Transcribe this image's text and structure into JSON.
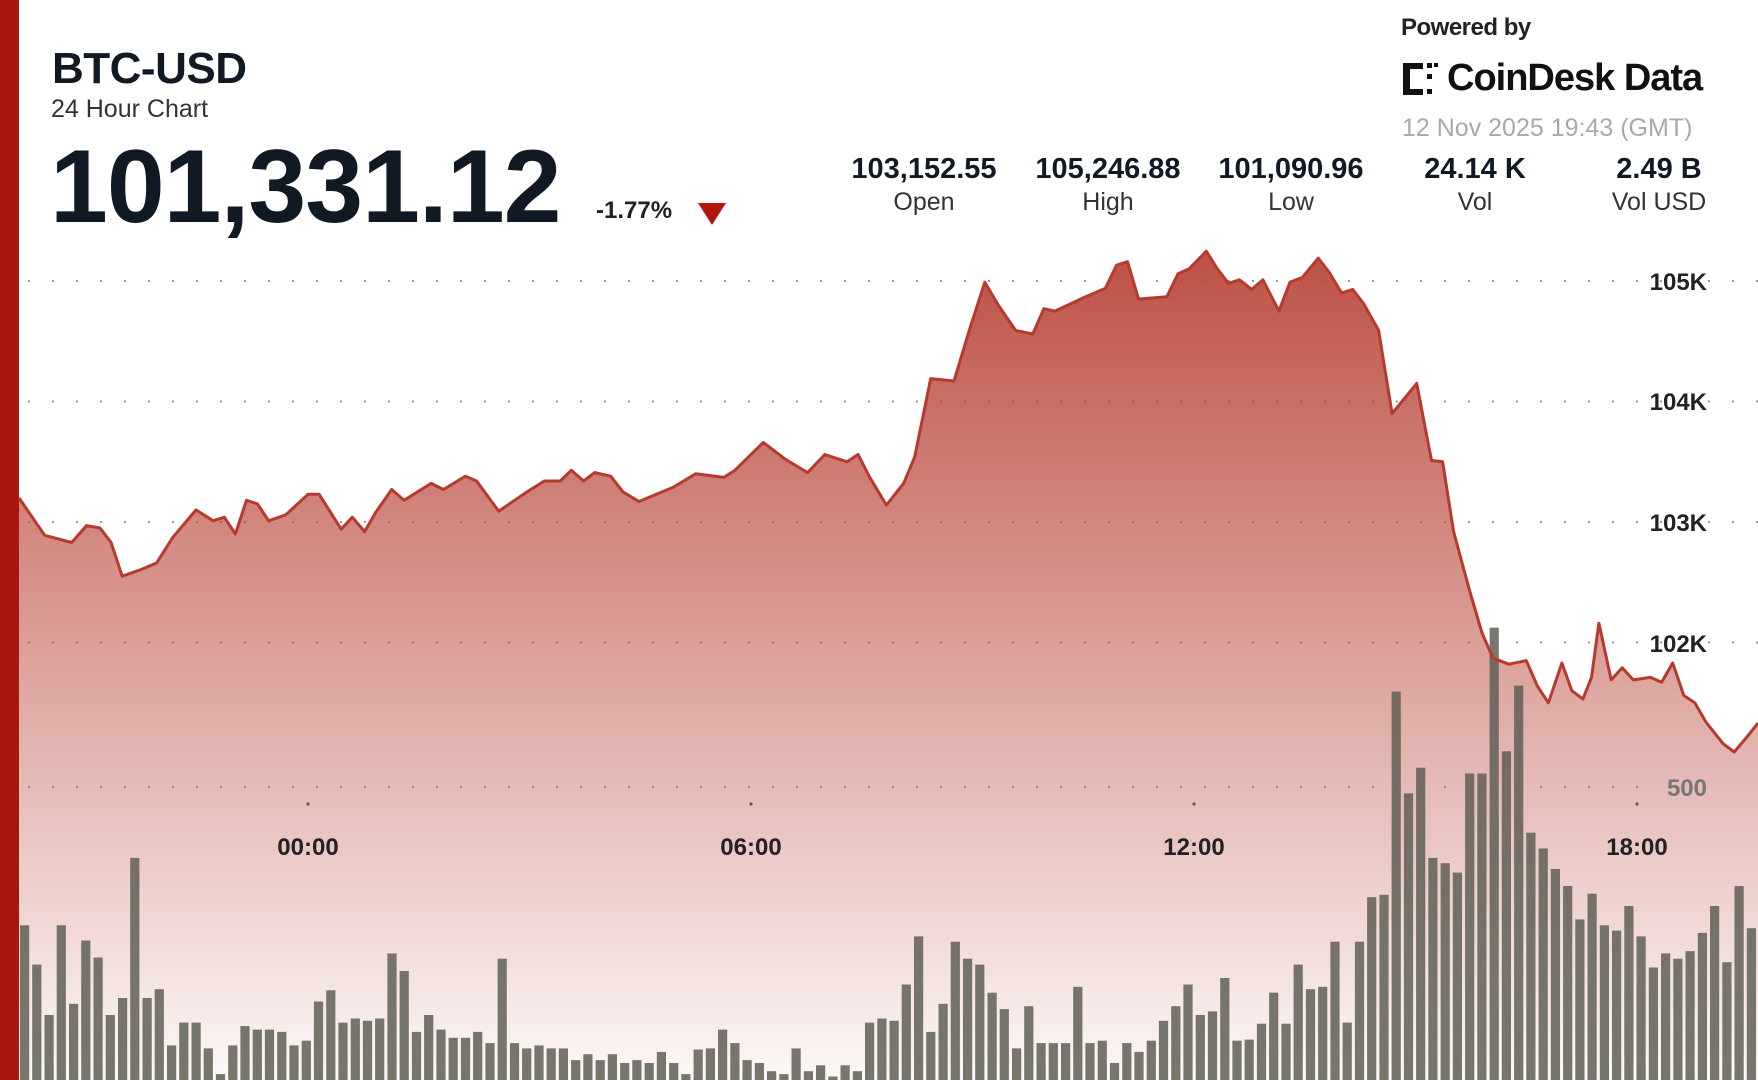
{
  "header": {
    "title": "BTC-USD",
    "subtitle": "24 Hour Chart",
    "price": "101,331.12",
    "change": "-1.77%",
    "change_direction_icon": "triangle-down-icon",
    "powered_by": "Powered by",
    "brand": "CoinDesk Data",
    "timestamp": "12 Nov 2025 19:43 (GMT)"
  },
  "stats": [
    {
      "value": "103,152.55",
      "label": "Open"
    },
    {
      "value": "105,246.88",
      "label": "High"
    },
    {
      "value": "101,090.96",
      "label": "Low"
    },
    {
      "value": "24.14 K",
      "label": "Vol"
    },
    {
      "value": "2.49 B",
      "label": "Vol USD"
    }
  ],
  "colors": {
    "accent": "#a8170d",
    "line": "#b83a2e",
    "fill": "#b9463a",
    "volume": "#5f5f55",
    "down": "#b1170d"
  },
  "chart_data": {
    "type": "area",
    "x_tick_labels": [
      "00:00",
      "06:00",
      "12:00",
      "18:00"
    ],
    "y_tick_labels": [
      "105K",
      "104K",
      "103K",
      "102K"
    ],
    "y_ticks": [
      105000,
      104000,
      103000,
      102000
    ],
    "volume_tick_label": "500",
    "volume_tick": 500,
    "grid": true,
    "price_series": [
      [
        "20:05",
        103200
      ],
      [
        "20:26",
        102890
      ],
      [
        "20:48",
        102830
      ],
      [
        "21:00",
        102970
      ],
      [
        "21:11",
        102950
      ],
      [
        "21:20",
        102830
      ],
      [
        "21:29",
        102550
      ],
      [
        "21:43",
        102600
      ],
      [
        "21:57",
        102660
      ],
      [
        "22:10",
        102870
      ],
      [
        "22:29",
        103100
      ],
      [
        "22:43",
        103010
      ],
      [
        "22:52",
        103040
      ],
      [
        "23:01",
        102900
      ],
      [
        "23:10",
        103180
      ],
      [
        "23:19",
        103150
      ],
      [
        "23:28",
        103010
      ],
      [
        "23:42",
        103060
      ],
      [
        "00:00",
        103230
      ],
      [
        "00:09",
        103230
      ],
      [
        "00:27",
        102940
      ],
      [
        "00:36",
        103040
      ],
      [
        "00:46",
        102920
      ],
      [
        "00:55",
        103080
      ],
      [
        "01:08",
        103270
      ],
      [
        "01:18",
        103180
      ],
      [
        "01:40",
        103320
      ],
      [
        "01:50",
        103270
      ],
      [
        "02:08",
        103380
      ],
      [
        "02:17",
        103340
      ],
      [
        "02:35",
        103090
      ],
      [
        "02:58",
        103250
      ],
      [
        "03:12",
        103340
      ],
      [
        "03:25",
        103340
      ],
      [
        "03:34",
        103430
      ],
      [
        "03:44",
        103340
      ],
      [
        "03:53",
        103410
      ],
      [
        "04:06",
        103380
      ],
      [
        "04:16",
        103250
      ],
      [
        "04:29",
        103170
      ],
      [
        "04:57",
        103290
      ],
      [
        "05:15",
        103400
      ],
      [
        "05:38",
        103370
      ],
      [
        "05:47",
        103430
      ],
      [
        "06:10",
        103660
      ],
      [
        "06:28",
        103520
      ],
      [
        "06:46",
        103410
      ],
      [
        "07:00",
        103560
      ],
      [
        "07:18",
        103500
      ],
      [
        "07:27",
        103560
      ],
      [
        "07:36",
        103380
      ],
      [
        "07:50",
        103140
      ],
      [
        "08:04",
        103320
      ],
      [
        "08:13",
        103540
      ],
      [
        "08:26",
        104190
      ],
      [
        "08:45",
        104170
      ],
      [
        "08:58",
        104610
      ],
      [
        "09:10",
        104990
      ],
      [
        "09:21",
        104800
      ],
      [
        "09:35",
        104590
      ],
      [
        "09:49",
        104560
      ],
      [
        "09:58",
        104770
      ],
      [
        "10:07",
        104750
      ],
      [
        "10:30",
        104860
      ],
      [
        "10:48",
        104940
      ],
      [
        "10:57",
        105130
      ],
      [
        "11:06",
        105160
      ],
      [
        "11:15",
        104850
      ],
      [
        "11:38",
        104870
      ],
      [
        "11:47",
        105060
      ],
      [
        "11:56",
        105100
      ],
      [
        "12:10",
        105247
      ],
      [
        "12:19",
        105100
      ],
      [
        "12:28",
        104980
      ],
      [
        "12:37",
        105010
      ],
      [
        "12:47",
        104930
      ],
      [
        "12:56",
        105010
      ],
      [
        "13:09",
        104750
      ],
      [
        "13:18",
        104990
      ],
      [
        "13:28",
        105030
      ],
      [
        "13:41",
        105190
      ],
      [
        "13:50",
        105070
      ],
      [
        "14:00",
        104900
      ],
      [
        "14:09",
        104930
      ],
      [
        "14:18",
        104810
      ],
      [
        "14:30",
        104590
      ],
      [
        "14:41",
        103900
      ],
      [
        "15:01",
        104150
      ],
      [
        "15:13",
        103510
      ],
      [
        "15:22",
        103500
      ],
      [
        "15:31",
        102920
      ],
      [
        "15:44",
        102430
      ],
      [
        "15:54",
        102080
      ],
      [
        "16:03",
        101870
      ],
      [
        "16:16",
        101820
      ],
      [
        "16:30",
        101850
      ],
      [
        "16:39",
        101640
      ],
      [
        "16:48",
        101500
      ],
      [
        "16:59",
        101830
      ],
      [
        "17:07",
        101600
      ],
      [
        "17:16",
        101530
      ],
      [
        "17:23",
        101710
      ],
      [
        "17:29",
        102160
      ],
      [
        "17:39",
        101690
      ],
      [
        "17:48",
        101790
      ],
      [
        "17:57",
        101690
      ],
      [
        "18:11",
        101710
      ],
      [
        "18:20",
        101670
      ],
      [
        "18:29",
        101830
      ],
      [
        "18:38",
        101560
      ],
      [
        "18:47",
        101500
      ],
      [
        "18:56",
        101340
      ],
      [
        "19:10",
        101160
      ],
      [
        "19:19",
        101091
      ],
      [
        "19:28",
        101200
      ],
      [
        "19:40",
        101331
      ]
    ],
    "volume_series": [
      264,
      197,
      111,
      264,
      130,
      238,
      209,
      111,
      140,
      379,
      140,
      155,
      59,
      98,
      98,
      54,
      10,
      59,
      92,
      86,
      86,
      82,
      59,
      67,
      134,
      153,
      98,
      105,
      101,
      105,
      216,
      186,
      82,
      111,
      86,
      72,
      72,
      82,
      63,
      207,
      63,
      54,
      59,
      54,
      54,
      34,
      44,
      34,
      44,
      29,
      34,
      29,
      48,
      29,
      10,
      52,
      54,
      86,
      63,
      34,
      29,
      15,
      10,
      54,
      15,
      25,
      6,
      25,
      15,
      98,
      105,
      101,
      163,
      245,
      82,
      130,
      236,
      207,
      197,
      149,
      121,
      54,
      126,
      63,
      63,
      63,
      159,
      63,
      67,
      29,
      63,
      48,
      67,
      101,
      126,
      163,
      111,
      117,
      174,
      67,
      69,
      96,
      149,
      96,
      197,
      155,
      159,
      236,
      98,
      236,
      312,
      316,
      663,
      489,
      533,
      379,
      370,
      354,
      523,
      523,
      772,
      561,
      673,
      422,
      395,
      360,
      331,
      274,
      318,
      264,
      255,
      297,
      245,
      192,
      216,
      207,
      220,
      251,
      297,
      201,
      331,
      259
    ]
  }
}
